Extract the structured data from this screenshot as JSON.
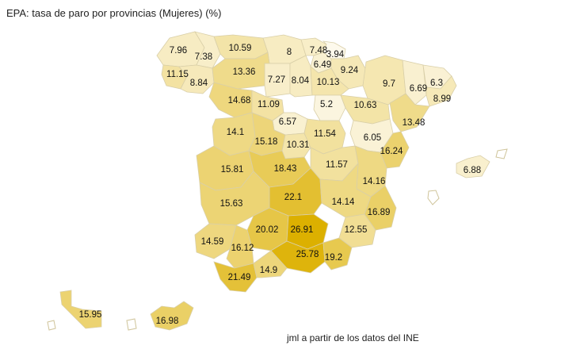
{
  "title": "EPA: tasa de paro por provincias (Mujeres) (%)",
  "source": "jml a partir de los datos del INE",
  "color_scale": {
    "low": "#fdf9ec",
    "high": "#dcb000"
  },
  "provinces": [
    {
      "value": "7.96"
    },
    {
      "value": "7.38"
    },
    {
      "value": "10.59"
    },
    {
      "value": "8"
    },
    {
      "value": "7.48"
    },
    {
      "value": "3.94"
    },
    {
      "value": "6.49"
    },
    {
      "value": "9.24"
    },
    {
      "value": "11.15"
    },
    {
      "value": "8.84"
    },
    {
      "value": "13.36"
    },
    {
      "value": "7.27"
    },
    {
      "value": "8.04"
    },
    {
      "value": "10.13"
    },
    {
      "value": "9.7"
    },
    {
      "value": "6.69"
    },
    {
      "value": "6.3"
    },
    {
      "value": "8.99"
    },
    {
      "value": "14.68"
    },
    {
      "value": "11.09"
    },
    {
      "value": "5.2"
    },
    {
      "value": "10.63"
    },
    {
      "value": "6.57"
    },
    {
      "value": "13.48"
    },
    {
      "value": "14.1"
    },
    {
      "value": "15.18"
    },
    {
      "value": "10.31"
    },
    {
      "value": "11.54"
    },
    {
      "value": "6.05"
    },
    {
      "value": "16.24"
    },
    {
      "value": "15.81"
    },
    {
      "value": "18.43"
    },
    {
      "value": "11.57"
    },
    {
      "value": "6.88"
    },
    {
      "value": "14.16"
    },
    {
      "value": "22.1"
    },
    {
      "value": "15.63"
    },
    {
      "value": "14.14"
    },
    {
      "value": "16.89"
    },
    {
      "value": "20.02"
    },
    {
      "value": "26.91"
    },
    {
      "value": "12.55"
    },
    {
      "value": "14.59"
    },
    {
      "value": "16.12"
    },
    {
      "value": "25.78"
    },
    {
      "value": "19.2"
    },
    {
      "value": "21.49"
    },
    {
      "value": "14.9"
    },
    {
      "value": "15.95"
    },
    {
      "value": "16.98"
    }
  ]
}
